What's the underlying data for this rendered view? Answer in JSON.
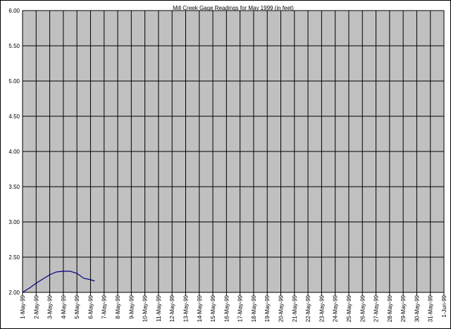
{
  "chart_data": {
    "type": "line",
    "title": "Mill Creek Gage Readings for May 1999 (in feet)",
    "x": [
      1,
      1.5,
      2,
      2.5,
      3,
      3.5,
      4,
      4.5,
      5,
      5.5,
      6,
      6.3
    ],
    "series": [
      {
        "color": "#000080",
        "values": [
          2.0,
          2.06,
          2.13,
          2.19,
          2.25,
          2.29,
          2.3,
          2.3,
          2.27,
          2.2,
          2.18,
          2.16
        ]
      }
    ],
    "xlim": [
      1,
      32
    ],
    "xticks": [
      {
        "value": 1,
        "label": "1-May-99"
      },
      {
        "value": 2,
        "label": "2-May-99"
      },
      {
        "value": 3,
        "label": "3-May-99"
      },
      {
        "value": 4,
        "label": "4-May-99"
      },
      {
        "value": 5,
        "label": "5-May-99"
      },
      {
        "value": 6,
        "label": "6-May-99"
      },
      {
        "value": 7,
        "label": "7-May-99"
      },
      {
        "value": 8,
        "label": "8-May-99"
      },
      {
        "value": 9,
        "label": "9-May-99"
      },
      {
        "value": 10,
        "label": "10-May-99"
      },
      {
        "value": 11,
        "label": "11-May-99"
      },
      {
        "value": 12,
        "label": "12-May-99"
      },
      {
        "value": 13,
        "label": "13-May-99"
      },
      {
        "value": 14,
        "label": "14-May-99"
      },
      {
        "value": 15,
        "label": "15-May-99"
      },
      {
        "value": 16,
        "label": "16-May-99"
      },
      {
        "value": 17,
        "label": "17-May-99"
      },
      {
        "value": 18,
        "label": "18-May-99"
      },
      {
        "value": 19,
        "label": "19-May-99"
      },
      {
        "value": 20,
        "label": "20-May-99"
      },
      {
        "value": 21,
        "label": "21-May-99"
      },
      {
        "value": 22,
        "label": "22-May-99"
      },
      {
        "value": 23,
        "label": "23-May-99"
      },
      {
        "value": 24,
        "label": "24-May-99"
      },
      {
        "value": 25,
        "label": "25-May-99"
      },
      {
        "value": 26,
        "label": "26-May-99"
      },
      {
        "value": 27,
        "label": "27-May-99"
      },
      {
        "value": 28,
        "label": "28-May-99"
      },
      {
        "value": 29,
        "label": "29-May-99"
      },
      {
        "value": 30,
        "label": "30-May-99"
      },
      {
        "value": 31,
        "label": "31-May-99"
      },
      {
        "value": 32,
        "label": "1-Jun-99"
      }
    ],
    "ylim": [
      2,
      6
    ],
    "yticks": [
      {
        "value": 2,
        "label": "2.00"
      },
      {
        "value": 2.5,
        "label": "2.50"
      },
      {
        "value": 3,
        "label": "3.00"
      },
      {
        "value": 3.5,
        "label": "3.50"
      },
      {
        "value": 4,
        "label": "4.00"
      },
      {
        "value": 4.5,
        "label": "4.50"
      },
      {
        "value": 5,
        "label": "5.00"
      },
      {
        "value": 5.5,
        "label": "5.50"
      },
      {
        "value": 6,
        "label": "6.00"
      }
    ],
    "grid": true
  }
}
